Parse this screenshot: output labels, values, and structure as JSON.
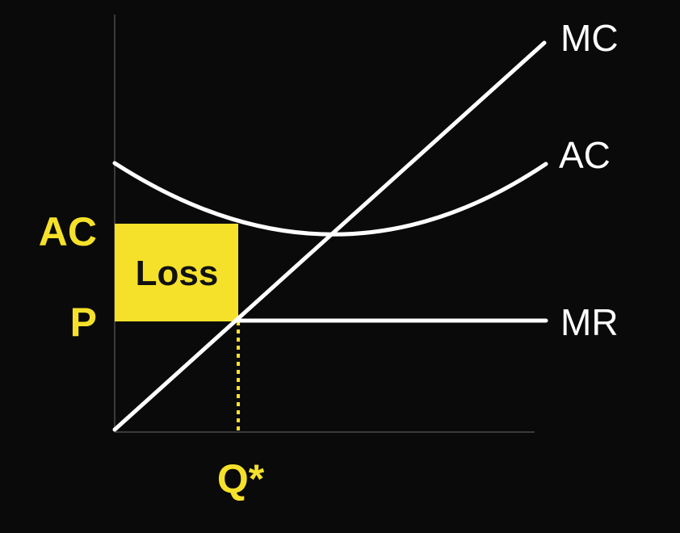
{
  "colors": {
    "background": "#0a0a0a",
    "curve": "#ffffff",
    "highlight": "#f5e12a",
    "highlight_text": "#111111",
    "axis": "#3a3a3a"
  },
  "labels": {
    "mc": "MC",
    "ac_curve": "AC",
    "mr": "MR",
    "ac_price": "AC",
    "price": "P",
    "quantity": "Q*",
    "loss": "Loss"
  }
}
